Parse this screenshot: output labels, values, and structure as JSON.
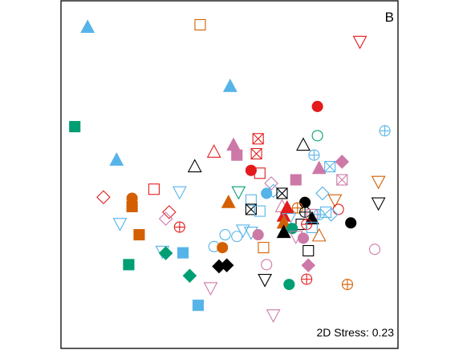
{
  "chart_data": {
    "type": "scatter",
    "title": "",
    "xlabel": "",
    "ylabel": "",
    "panel_label": "B",
    "stress_text": "2D Stress: 0.23",
    "axes_visible": false,
    "grid": false,
    "legend": "none",
    "xlim": [
      0,
      100
    ],
    "ylim": [
      0,
      100
    ],
    "colors": {
      "black": "#000000",
      "red": "#e41a1c",
      "orange": "#d45f00",
      "green": "#009e73",
      "sky": "#56b4e9",
      "pink": "#cc79a7"
    },
    "points": [
      {
        "x": 7.9,
        "y": 92.4,
        "shape": "triangle",
        "fill": true,
        "color": "sky"
      },
      {
        "x": 41.3,
        "y": 93.1,
        "shape": "square",
        "fill": false,
        "color": "orange"
      },
      {
        "x": 88.7,
        "y": 88.3,
        "shape": "triangle-down",
        "fill": false,
        "color": "red"
      },
      {
        "x": 50.2,
        "y": 75.4,
        "shape": "triangle",
        "fill": true,
        "color": "sky"
      },
      {
        "x": 76.1,
        "y": 69.6,
        "shape": "circle",
        "fill": true,
        "color": "red"
      },
      {
        "x": 4.1,
        "y": 63.8,
        "shape": "square",
        "fill": true,
        "color": "green"
      },
      {
        "x": 96.1,
        "y": 62.6,
        "shape": "circle-plus",
        "fill": false,
        "color": "sky"
      },
      {
        "x": 76.1,
        "y": 61.2,
        "shape": "circle",
        "fill": false,
        "color": "green"
      },
      {
        "x": 58.5,
        "y": 60.3,
        "shape": "square-x",
        "fill": false,
        "color": "red"
      },
      {
        "x": 71.9,
        "y": 58.5,
        "shape": "triangle",
        "fill": false,
        "color": "black"
      },
      {
        "x": 51.2,
        "y": 58.5,
        "shape": "triangle",
        "fill": true,
        "color": "pink"
      },
      {
        "x": 45.4,
        "y": 56.5,
        "shape": "triangle",
        "fill": false,
        "color": "red"
      },
      {
        "x": 52.2,
        "y": 55.6,
        "shape": "square",
        "fill": true,
        "color": "pink"
      },
      {
        "x": 58.0,
        "y": 56.0,
        "shape": "square-x",
        "fill": false,
        "color": "red"
      },
      {
        "x": 75.1,
        "y": 55.6,
        "shape": "circle-plus",
        "fill": false,
        "color": "sky"
      },
      {
        "x": 16.5,
        "y": 54.2,
        "shape": "triangle",
        "fill": true,
        "color": "sky"
      },
      {
        "x": 39.7,
        "y": 52.3,
        "shape": "triangle",
        "fill": false,
        "color": "black"
      },
      {
        "x": 83.4,
        "y": 53.7,
        "shape": "diamond",
        "fill": true,
        "color": "pink"
      },
      {
        "x": 79.8,
        "y": 52.3,
        "shape": "square-x",
        "fill": false,
        "color": "sky"
      },
      {
        "x": 76.6,
        "y": 51.8,
        "shape": "triangle",
        "fill": true,
        "color": "pink"
      },
      {
        "x": 59.0,
        "y": 50.4,
        "shape": "square",
        "fill": false,
        "color": "red"
      },
      {
        "x": 56.4,
        "y": 51.2,
        "shape": "circle",
        "fill": true,
        "color": "red"
      },
      {
        "x": 83.4,
        "y": 48.5,
        "shape": "square-x",
        "fill": false,
        "color": "pink"
      },
      {
        "x": 94.2,
        "y": 48.0,
        "shape": "triangle-down",
        "fill": false,
        "color": "orange"
      },
      {
        "x": 69.7,
        "y": 48.5,
        "shape": "square",
        "fill": true,
        "color": "pink"
      },
      {
        "x": 62.4,
        "y": 47.5,
        "shape": "diamond",
        "fill": false,
        "color": "pink"
      },
      {
        "x": 63.0,
        "y": 45.3,
        "shape": "diamond",
        "fill": false,
        "color": "sky"
      },
      {
        "x": 61.0,
        "y": 44.6,
        "shape": "circle",
        "fill": true,
        "color": "sky"
      },
      {
        "x": 27.6,
        "y": 45.8,
        "shape": "square",
        "fill": false,
        "color": "red"
      },
      {
        "x": 35.2,
        "y": 45.0,
        "shape": "triangle-down",
        "fill": false,
        "color": "sky"
      },
      {
        "x": 52.7,
        "y": 45.0,
        "shape": "triangle-down",
        "fill": false,
        "color": "green"
      },
      {
        "x": 65.6,
        "y": 44.6,
        "shape": "square-x",
        "fill": false,
        "color": "black"
      },
      {
        "x": 77.6,
        "y": 44.6,
        "shape": "diamond",
        "fill": false,
        "color": "sky"
      },
      {
        "x": 12.6,
        "y": 43.5,
        "shape": "diamond",
        "fill": false,
        "color": "red"
      },
      {
        "x": 21.1,
        "y": 43.2,
        "shape": "circle",
        "fill": true,
        "color": "orange"
      },
      {
        "x": 21.1,
        "y": 40.8,
        "shape": "square",
        "fill": true,
        "color": "orange"
      },
      {
        "x": 49.7,
        "y": 42.0,
        "shape": "triangle",
        "fill": true,
        "color": "orange"
      },
      {
        "x": 56.4,
        "y": 42.7,
        "shape": "square",
        "fill": false,
        "color": "sky"
      },
      {
        "x": 72.4,
        "y": 42.0,
        "shape": "circle",
        "fill": true,
        "color": "black"
      },
      {
        "x": 70.2,
        "y": 40.4,
        "shape": "circle-plus",
        "fill": false,
        "color": "orange"
      },
      {
        "x": 81.3,
        "y": 42.7,
        "shape": "triangle-down",
        "fill": false,
        "color": "orange"
      },
      {
        "x": 94.2,
        "y": 41.8,
        "shape": "triangle-down",
        "fill": false,
        "color": "black"
      },
      {
        "x": 65.6,
        "y": 40.8,
        "shape": "triangle",
        "fill": false,
        "color": "pink"
      },
      {
        "x": 32.1,
        "y": 39.2,
        "shape": "diamond",
        "fill": false,
        "color": "red"
      },
      {
        "x": 56.4,
        "y": 40.0,
        "shape": "square-x",
        "fill": false,
        "color": "black"
      },
      {
        "x": 67.1,
        "y": 40.4,
        "shape": "triangle",
        "fill": true,
        "color": "red"
      },
      {
        "x": 59.0,
        "y": 39.5,
        "shape": "square",
        "fill": false,
        "color": "sky"
      },
      {
        "x": 82.3,
        "y": 40.0,
        "shape": "circle",
        "fill": false,
        "color": "red"
      },
      {
        "x": 72.4,
        "y": 39.2,
        "shape": "circle-plus",
        "fill": false,
        "color": "black"
      },
      {
        "x": 78.6,
        "y": 39.2,
        "shape": "square",
        "fill": false,
        "color": "sky"
      },
      {
        "x": 74.5,
        "y": 38.5,
        "shape": "square",
        "fill": false,
        "color": "pink"
      },
      {
        "x": 76.6,
        "y": 38.5,
        "shape": "circle-plus",
        "fill": false,
        "color": "sky"
      },
      {
        "x": 80.2,
        "y": 38.5,
        "shape": "diamond",
        "fill": false,
        "color": "sky"
      },
      {
        "x": 66.1,
        "y": 38.1,
        "shape": "triangle",
        "fill": true,
        "color": "red"
      },
      {
        "x": 67.7,
        "y": 37.3,
        "shape": "triangle-down",
        "fill": false,
        "color": "sky"
      },
      {
        "x": 74.5,
        "y": 37.3,
        "shape": "triangle",
        "fill": true,
        "color": "black"
      },
      {
        "x": 31.1,
        "y": 37.3,
        "shape": "diamond",
        "fill": false,
        "color": "pink"
      },
      {
        "x": 17.5,
        "y": 35.9,
        "shape": "triangle-down",
        "fill": false,
        "color": "sky"
      },
      {
        "x": 35.2,
        "y": 34.9,
        "shape": "circle-plus",
        "fill": false,
        "color": "red"
      },
      {
        "x": 71.3,
        "y": 35.7,
        "shape": "square",
        "fill": false,
        "color": "black"
      },
      {
        "x": 72.9,
        "y": 35.7,
        "shape": "circle-plus",
        "fill": false,
        "color": "red"
      },
      {
        "x": 74.5,
        "y": 34.8,
        "shape": "square",
        "fill": false,
        "color": "sky"
      },
      {
        "x": 86.0,
        "y": 36.1,
        "shape": "circle",
        "fill": true,
        "color": "black"
      },
      {
        "x": 66.1,
        "y": 36.1,
        "shape": "triangle",
        "fill": true,
        "color": "orange"
      },
      {
        "x": 68.6,
        "y": 34.5,
        "shape": "circle",
        "fill": true,
        "color": "green"
      },
      {
        "x": 66.1,
        "y": 33.4,
        "shape": "triangle",
        "fill": true,
        "color": "black"
      },
      {
        "x": 54.0,
        "y": 34.0,
        "shape": "triangle-down",
        "fill": false,
        "color": "sky"
      },
      {
        "x": 56.4,
        "y": 33.4,
        "shape": "triangle-down",
        "fill": false,
        "color": "sky"
      },
      {
        "x": 76.6,
        "y": 32.4,
        "shape": "triangle",
        "fill": false,
        "color": "orange"
      },
      {
        "x": 23.2,
        "y": 32.7,
        "shape": "square",
        "fill": true,
        "color": "orange"
      },
      {
        "x": 48.7,
        "y": 32.7,
        "shape": "circle",
        "fill": false,
        "color": "sky"
      },
      {
        "x": 52.2,
        "y": 32.2,
        "shape": "circle",
        "fill": false,
        "color": "sky"
      },
      {
        "x": 58.5,
        "y": 32.7,
        "shape": "circle",
        "fill": true,
        "color": "pink"
      },
      {
        "x": 69.7,
        "y": 32.2,
        "shape": "triangle-down",
        "fill": false,
        "color": "pink"
      },
      {
        "x": 71.9,
        "y": 31.7,
        "shape": "circle",
        "fill": true,
        "color": "pink"
      },
      {
        "x": 45.4,
        "y": 29.3,
        "shape": "circle",
        "fill": false,
        "color": "sky"
      },
      {
        "x": 47.9,
        "y": 29.0,
        "shape": "circle",
        "fill": true,
        "color": "orange"
      },
      {
        "x": 60.1,
        "y": 29.0,
        "shape": "square",
        "fill": false,
        "color": "orange"
      },
      {
        "x": 73.4,
        "y": 28.1,
        "shape": "square",
        "fill": false,
        "color": "black"
      },
      {
        "x": 93.1,
        "y": 28.5,
        "shape": "circle",
        "fill": false,
        "color": "pink"
      },
      {
        "x": 30.1,
        "y": 27.9,
        "shape": "triangle-down",
        "fill": false,
        "color": "sky"
      },
      {
        "x": 36.2,
        "y": 27.5,
        "shape": "square",
        "fill": true,
        "color": "sky"
      },
      {
        "x": 31.1,
        "y": 27.4,
        "shape": "diamond",
        "fill": true,
        "color": "green"
      },
      {
        "x": 20.1,
        "y": 24.1,
        "shape": "square",
        "fill": true,
        "color": "green"
      },
      {
        "x": 61.0,
        "y": 24.1,
        "shape": "circle",
        "fill": false,
        "color": "pink"
      },
      {
        "x": 73.4,
        "y": 23.9,
        "shape": "diamond",
        "fill": true,
        "color": "pink"
      },
      {
        "x": 46.9,
        "y": 23.6,
        "shape": "diamond",
        "fill": true,
        "color": "black"
      },
      {
        "x": 49.2,
        "y": 23.9,
        "shape": "diamond",
        "fill": true,
        "color": "black"
      },
      {
        "x": 38.2,
        "y": 20.9,
        "shape": "diamond",
        "fill": true,
        "color": "green"
      },
      {
        "x": 60.5,
        "y": 19.8,
        "shape": "triangle-down",
        "fill": false,
        "color": "black"
      },
      {
        "x": 72.9,
        "y": 19.9,
        "shape": "circle-plus",
        "fill": false,
        "color": "red"
      },
      {
        "x": 67.7,
        "y": 18.4,
        "shape": "circle",
        "fill": true,
        "color": "green"
      },
      {
        "x": 44.4,
        "y": 17.4,
        "shape": "triangle-down",
        "fill": false,
        "color": "pink"
      },
      {
        "x": 85.0,
        "y": 18.4,
        "shape": "circle-plus",
        "fill": false,
        "color": "orange"
      },
      {
        "x": 40.7,
        "y": 12.4,
        "shape": "square",
        "fill": true,
        "color": "sky"
      },
      {
        "x": 63.0,
        "y": 9.6,
        "shape": "triangle-down",
        "fill": false,
        "color": "pink"
      }
    ]
  }
}
